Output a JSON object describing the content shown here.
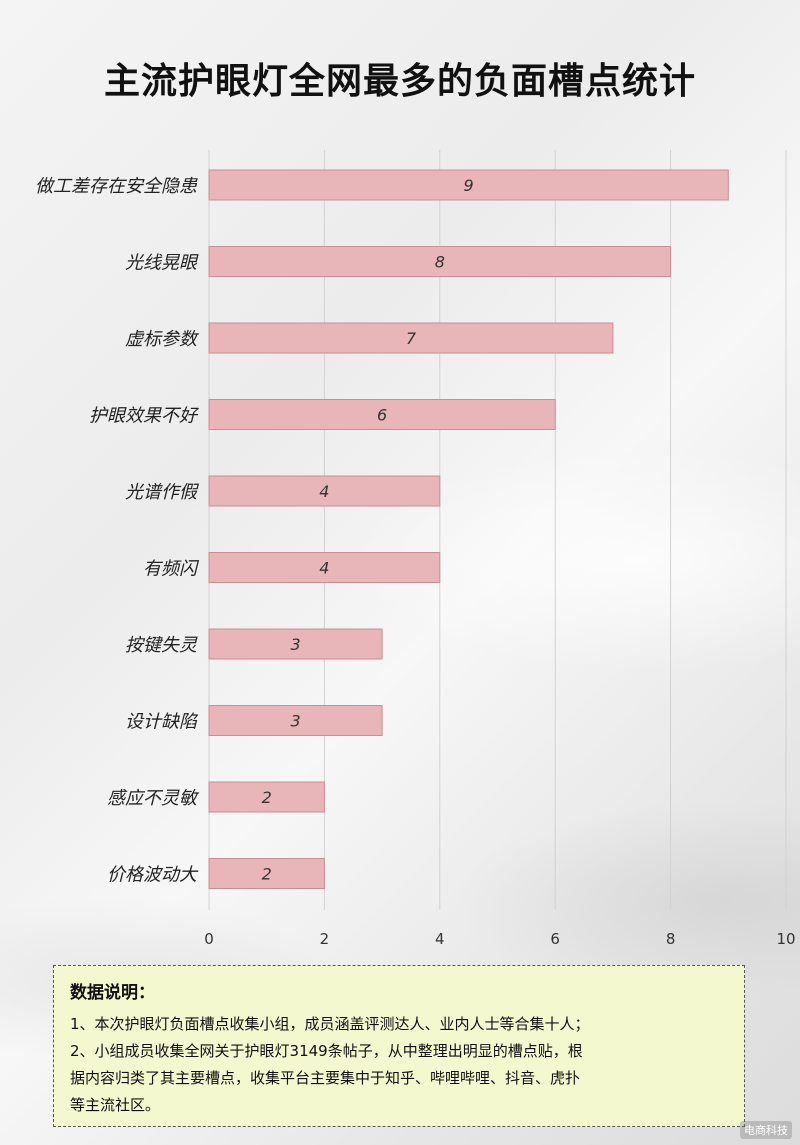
{
  "title": "主流护眼灯全网最多的负面槽点统计",
  "chart_data": {
    "type": "bar",
    "orientation": "horizontal",
    "categories": [
      "做工差存在安全隐患",
      "光线晃眼",
      "虚标参数",
      "护眼效果不好",
      "光谱作假",
      "有频闪",
      "按键失灵",
      "设计缺陷",
      "感应不灵敏",
      "价格波动大"
    ],
    "values": [
      9,
      8,
      7,
      6,
      4,
      4,
      3,
      3,
      2,
      2
    ],
    "xlim": [
      0,
      10
    ],
    "xticks": [
      0,
      2,
      4,
      6,
      8,
      10
    ],
    "grid": "vertical",
    "bar_color": "#e8b6b8",
    "bar_border": "#c98f92"
  },
  "notes": {
    "heading": "数据说明：",
    "lines": [
      "1、本次护眼灯负面槽点收集小组，成员涵盖评测达人、业内人士等合集十人；",
      "2、小组成员收集全网关于护眼灯3149条帖子，从中整理出明显的槽点贴，根",
      "据内容归类了其主要槽点，收集平台主要集中于知乎、哔哩哔哩、抖音、虎扑",
      "等主流社区。"
    ],
    "bg_color": "#f3f8cf"
  },
  "watermark": "电商科技"
}
